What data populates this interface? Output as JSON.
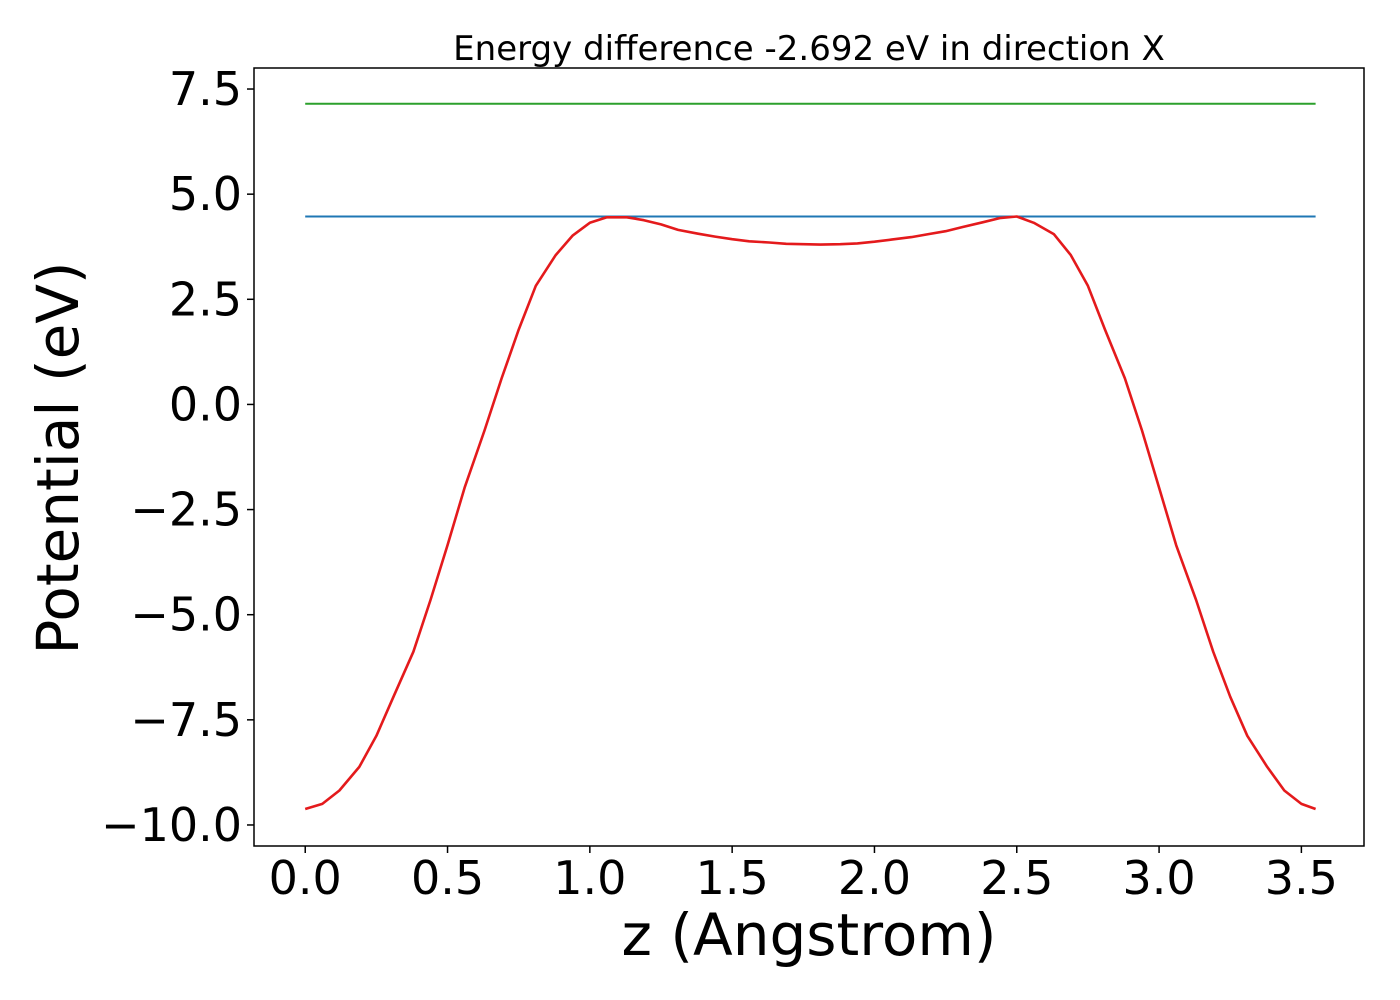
{
  "chart_data": {
    "type": "line",
    "title": "Energy difference -2.692 eV in direction X",
    "xlabel": "z (Angstrom)",
    "ylabel": "Potential (eV)",
    "xlim": [
      -0.18,
      3.72
    ],
    "ylim": [
      -10.5,
      8.0
    ],
    "x_ticks": [
      0.0,
      0.5,
      1.0,
      1.5,
      2.0,
      2.5,
      3.0,
      3.5
    ],
    "x_tick_labels": [
      "0.0",
      "0.5",
      "1.0",
      "1.5",
      "2.0",
      "2.5",
      "3.0",
      "3.5"
    ],
    "y_ticks": [
      7.5,
      5.0,
      2.5,
      0.0,
      -2.5,
      -5.0,
      -7.5,
      -10.0
    ],
    "y_tick_labels": [
      "7.5",
      "5.0",
      "2.5",
      "0.0",
      "−2.5",
      "−5.0",
      "−7.5",
      "−10.0"
    ],
    "grid": false,
    "series": [
      {
        "color": "#2ca02c",
        "x": [
          0.0,
          3.55
        ],
        "y": [
          7.15,
          7.15
        ]
      },
      {
        "color": "#1f77b4",
        "x": [
          0.0,
          3.55
        ],
        "y": [
          4.47,
          4.47
        ]
      },
      {
        "color": "#e41a1c",
        "x": [
          0.0,
          0.06,
          0.12,
          0.19,
          0.25,
          0.31,
          0.38,
          0.44,
          0.5,
          0.56,
          0.63,
          0.69,
          0.75,
          0.81,
          0.88,
          0.94,
          1.0,
          1.06,
          1.13,
          1.19,
          1.25,
          1.31,
          1.38,
          1.44,
          1.5,
          1.56,
          1.63,
          1.69,
          1.75,
          1.81,
          1.88,
          1.94,
          2.0,
          2.06,
          2.13,
          2.19,
          2.25,
          2.31,
          2.38,
          2.44,
          2.5,
          2.56,
          2.63,
          2.69,
          2.75,
          2.81,
          2.88,
          2.94,
          3.0,
          3.06,
          3.13,
          3.19,
          3.25,
          3.31,
          3.38,
          3.44,
          3.5,
          3.55
        ],
        "y": [
          -9.62,
          -9.5,
          -9.18,
          -8.62,
          -7.88,
          -6.95,
          -5.88,
          -4.65,
          -3.35,
          -1.98,
          -0.62,
          0.62,
          1.78,
          2.82,
          3.55,
          4.02,
          4.32,
          4.45,
          4.45,
          4.38,
          4.28,
          4.15,
          4.06,
          3.99,
          3.93,
          3.88,
          3.85,
          3.82,
          3.81,
          3.8,
          3.81,
          3.83,
          3.87,
          3.92,
          3.98,
          4.05,
          4.12,
          4.22,
          4.33,
          4.43,
          4.47,
          4.32,
          4.05,
          3.55,
          2.82,
          1.78,
          0.62,
          -0.62,
          -1.98,
          -3.35,
          -4.65,
          -5.88,
          -6.95,
          -7.88,
          -8.62,
          -9.18,
          -9.5,
          -9.62
        ]
      }
    ]
  }
}
